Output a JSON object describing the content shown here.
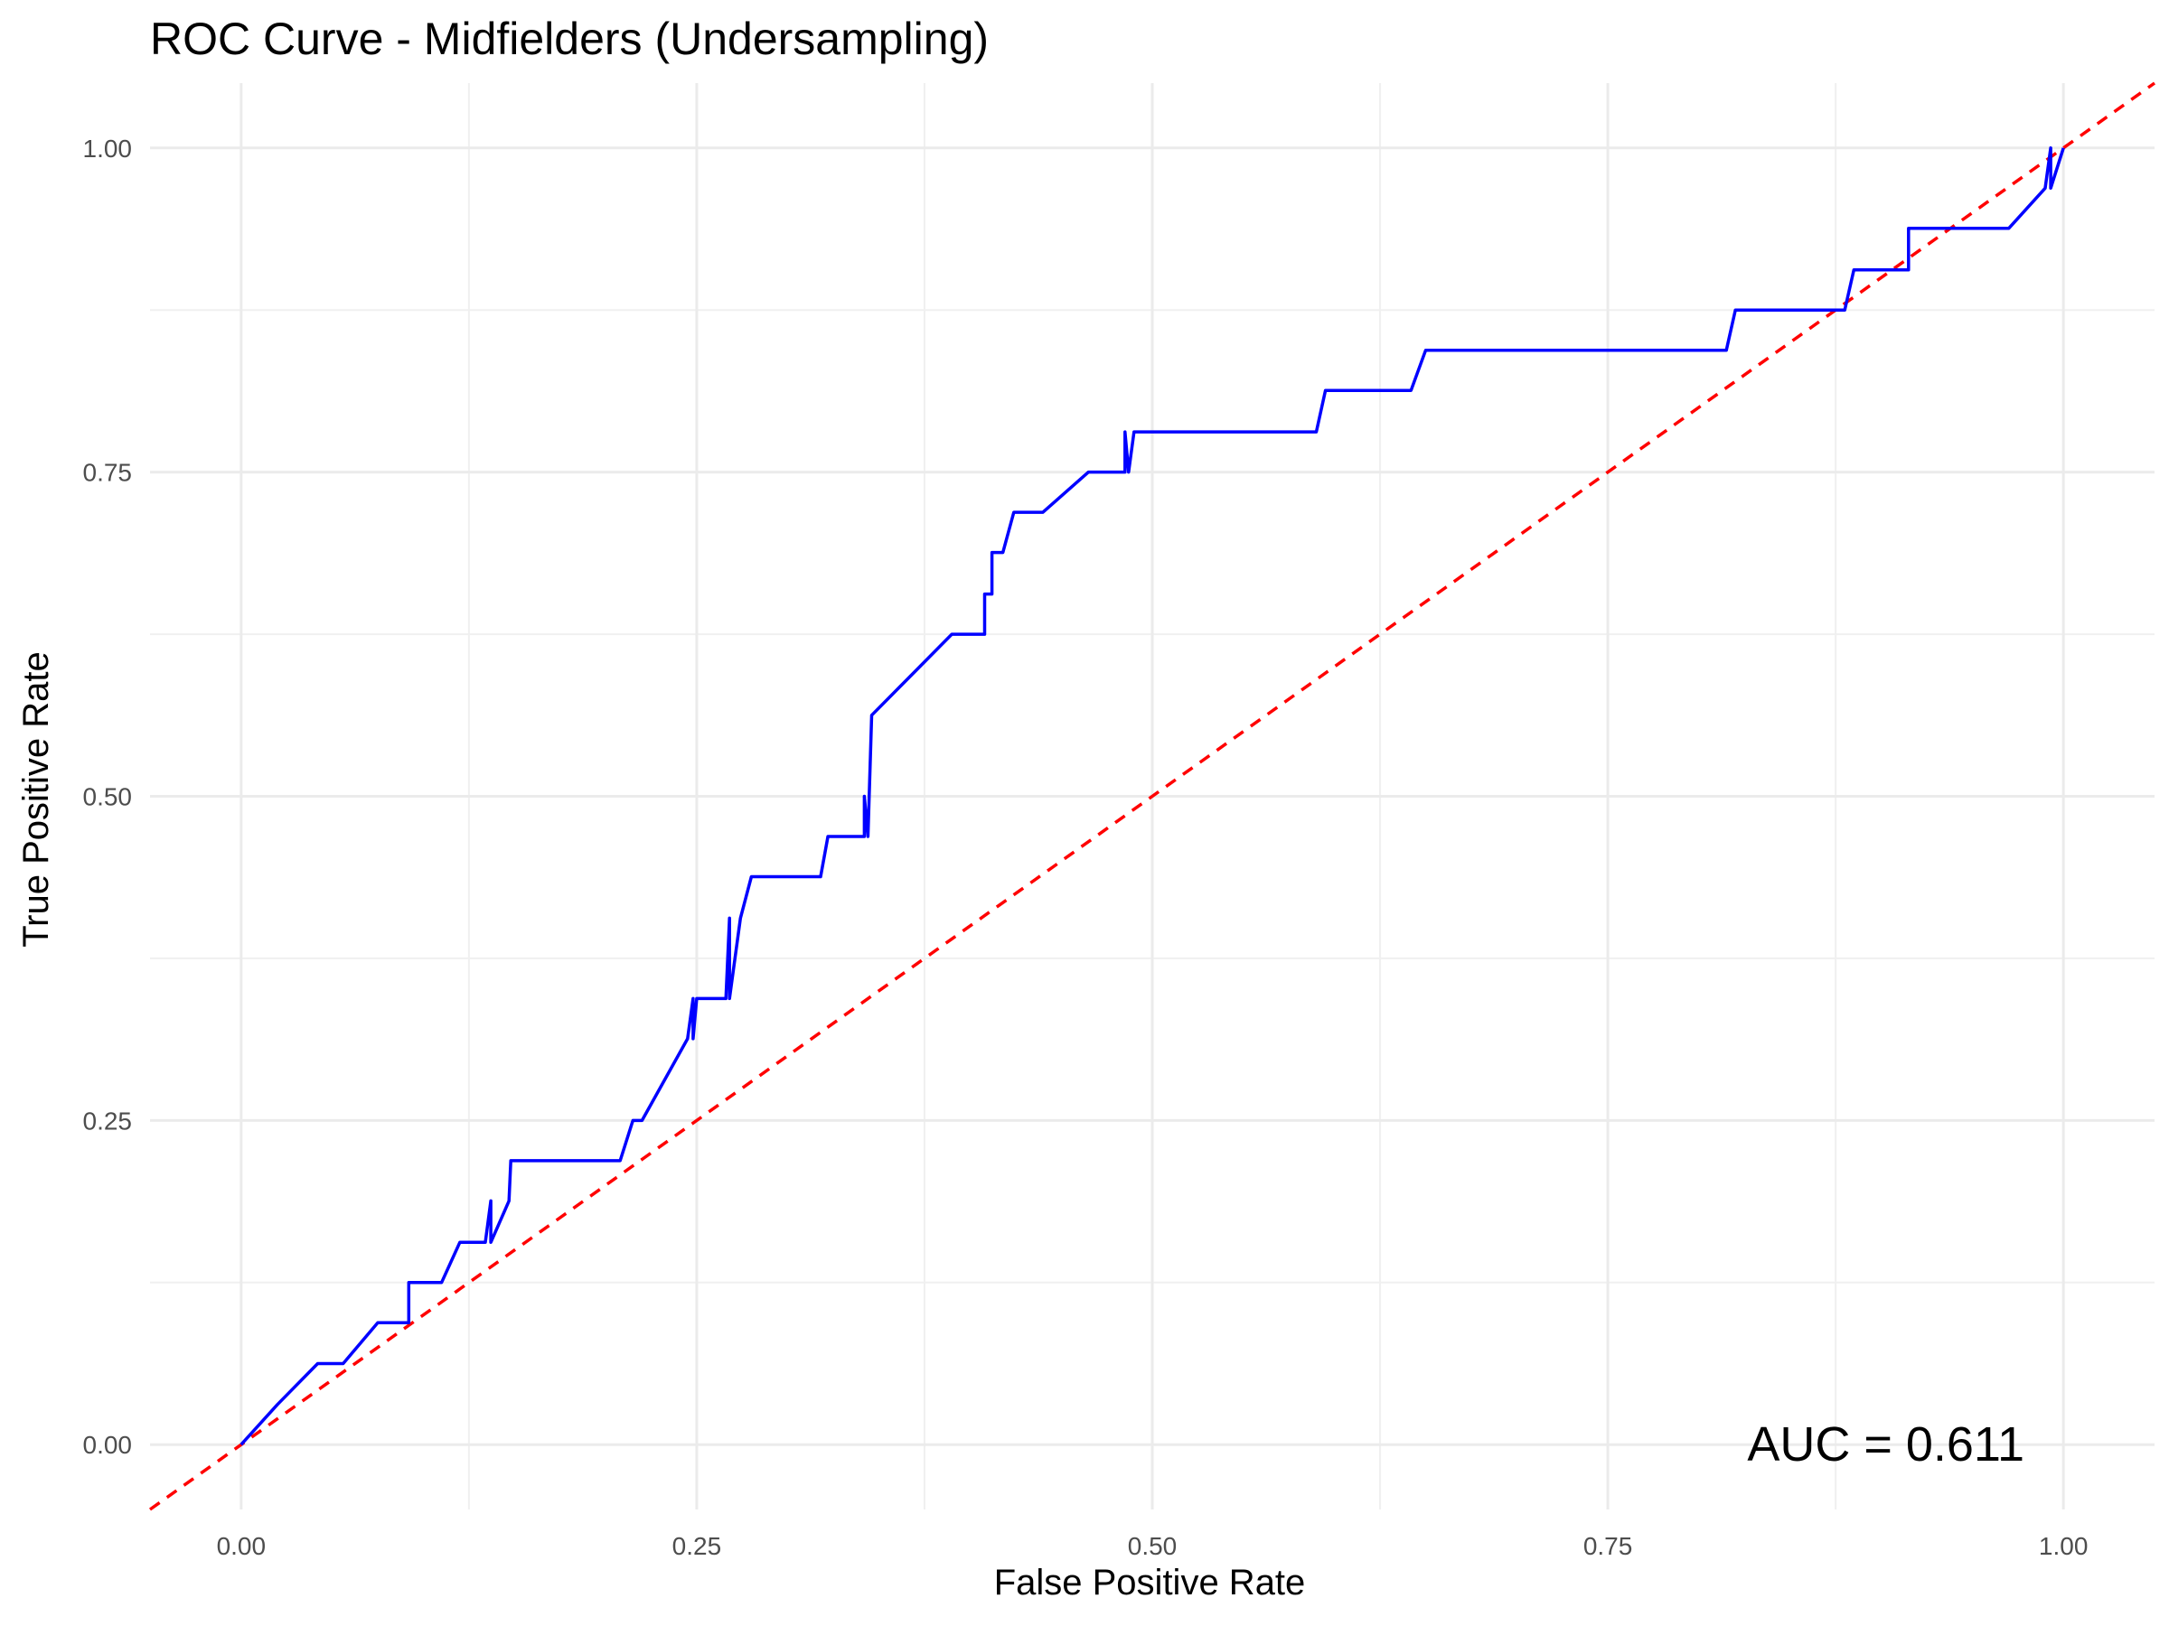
{
  "chart_data": {
    "type": "line",
    "title": "ROC Curve - Midfielders (Undersampling)",
    "xlabel": "False Positive Rate",
    "ylabel": "True Positive Rate",
    "xlim": [
      -0.05,
      1.05
    ],
    "ylim": [
      -0.05,
      1.05
    ],
    "x_ticks": [
      0.0,
      0.25,
      0.5,
      0.75,
      1.0
    ],
    "y_ticks": [
      0.0,
      0.25,
      0.5,
      0.75,
      1.0
    ],
    "x_tick_labels": [
      "0.00",
      "0.25",
      "0.50",
      "0.75",
      "1.00"
    ],
    "y_tick_labels": [
      "0.00",
      "0.25",
      "0.50",
      "0.75",
      "1.00"
    ],
    "grid": true,
    "legend": "none",
    "annotation": "AUC = 0.611",
    "series": [
      {
        "color": "#0000ff",
        "style": "solid",
        "x": [
          0.0,
          0.02,
          0.042,
          0.056,
          0.075,
          0.092,
          0.092,
          0.11,
          0.12,
          0.134,
          0.137,
          0.137,
          0.147,
          0.148,
          0.208,
          0.215,
          0.22,
          0.245,
          0.248,
          0.248,
          0.25,
          0.266,
          0.268,
          0.268,
          0.274,
          0.28,
          0.318,
          0.322,
          0.342,
          0.342,
          0.344,
          0.346,
          0.39,
          0.408,
          0.408,
          0.412,
          0.412,
          0.418,
          0.424,
          0.424,
          0.44,
          0.465,
          0.485,
          0.485,
          0.487,
          0.49,
          0.59,
          0.595,
          0.642,
          0.65,
          0.815,
          0.82,
          0.88,
          0.885,
          0.915,
          0.915,
          0.97,
          0.99,
          0.993,
          0.993,
          1.0
        ],
        "y": [
          0.0,
          0.031,
          0.0625,
          0.0625,
          0.094,
          0.094,
          0.125,
          0.125,
          0.156,
          0.156,
          0.188,
          0.156,
          0.188,
          0.219,
          0.219,
          0.25,
          0.25,
          0.313,
          0.344,
          0.313,
          0.344,
          0.344,
          0.406,
          0.344,
          0.406,
          0.438,
          0.438,
          0.469,
          0.469,
          0.5,
          0.469,
          0.5625,
          0.625,
          0.625,
          0.656,
          0.656,
          0.688,
          0.688,
          0.719,
          0.719,
          0.719,
          0.75,
          0.75,
          0.781,
          0.75,
          0.781,
          0.781,
          0.813,
          0.813,
          0.844,
          0.844,
          0.875,
          0.875,
          0.906,
          0.906,
          0.938,
          0.938,
          0.969,
          1.0,
          0.969,
          1.0
        ]
      },
      {
        "color": "#ff0000",
        "style": "dashed",
        "x": [
          -0.05,
          1.05
        ],
        "y": [
          -0.05,
          1.05
        ]
      }
    ]
  }
}
